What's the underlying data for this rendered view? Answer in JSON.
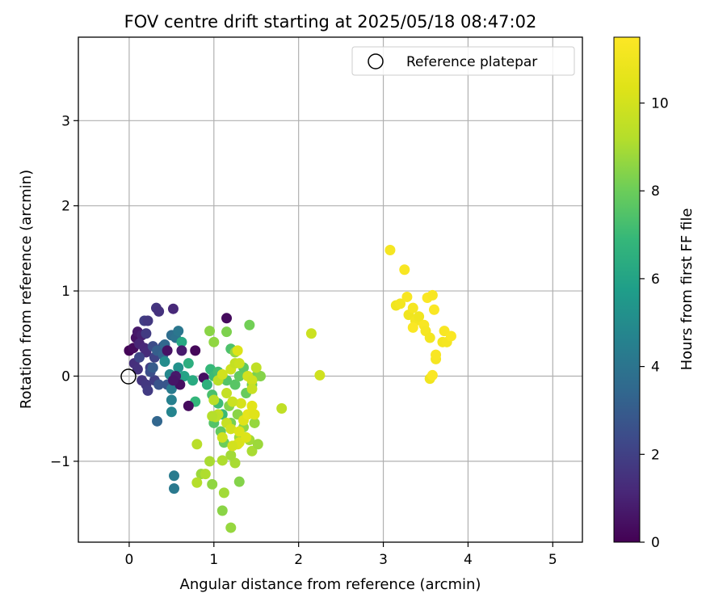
{
  "chart_data": {
    "type": "scatter",
    "title": "FOV centre drift starting at 2025/05/18 08:47:02",
    "xlabel": "Angular distance from reference (arcmin)",
    "ylabel": "Rotation from reference (arcmin)",
    "xlim": [
      -0.6,
      5.35
    ],
    "ylim": [
      -1.95,
      3.98
    ],
    "xticks": [
      0,
      1,
      2,
      3,
      4,
      5
    ],
    "yticks": [
      -1,
      0,
      1,
      2,
      3
    ],
    "grid": true,
    "legend": {
      "placement": "top-right",
      "entries": [
        "Reference platepar"
      ]
    },
    "reference_point": {
      "x": 0,
      "y": 0
    },
    "colorbar": {
      "label": "Hours from first FF file",
      "range": [
        0,
        11.5
      ],
      "ticks": [
        0,
        2,
        4,
        6,
        8,
        10
      ],
      "colormap": "viridis"
    },
    "series": [
      {
        "points": [
          [
            0.0,
            0.3,
            0.1
          ],
          [
            0.05,
            0.33,
            0.3
          ],
          [
            0.08,
            0.45,
            0.5
          ],
          [
            0.1,
            0.52,
            0.7
          ],
          [
            0.15,
            0.48,
            0.9
          ],
          [
            0.12,
            0.38,
            1.1
          ],
          [
            0.18,
            0.33,
            1.2
          ],
          [
            0.2,
            0.28,
            1.3
          ],
          [
            0.06,
            0.15,
            1.4
          ],
          [
            0.1,
            0.08,
            1.5
          ],
          [
            0.15,
            -0.05,
            1.6
          ],
          [
            0.2,
            -0.1,
            1.7
          ],
          [
            0.22,
            -0.17,
            1.8
          ],
          [
            0.3,
            -0.05,
            1.9
          ],
          [
            0.25,
            0.1,
            2.0
          ],
          [
            0.3,
            0.22,
            2.1
          ],
          [
            0.35,
            0.3,
            2.2
          ],
          [
            0.4,
            0.35,
            2.3
          ],
          [
            0.28,
            0.35,
            2.4
          ],
          [
            0.18,
            0.65,
            1.9
          ],
          [
            0.22,
            0.65,
            1.7
          ],
          [
            0.32,
            0.8,
            1.6
          ],
          [
            0.35,
            0.76,
            1.5
          ],
          [
            0.52,
            0.79,
            1.2
          ],
          [
            0.2,
            0.5,
            1.8
          ],
          [
            0.12,
            0.22,
            2.2
          ],
          [
            0.25,
            0.05,
            2.5
          ],
          [
            0.35,
            -0.1,
            2.7
          ],
          [
            0.45,
            -0.1,
            2.8
          ],
          [
            0.28,
            0.1,
            3.0
          ],
          [
            0.33,
            0.3,
            3.1
          ],
          [
            0.4,
            0.25,
            3.3
          ],
          [
            0.42,
            0.37,
            3.5
          ],
          [
            0.5,
            0.48,
            3.7
          ],
          [
            0.55,
            0.45,
            3.9
          ],
          [
            0.58,
            0.53,
            4.1
          ],
          [
            0.5,
            -0.15,
            4.3
          ],
          [
            0.5,
            -0.28,
            4.5
          ],
          [
            0.5,
            -0.42,
            4.7
          ],
          [
            0.33,
            -0.53,
            3.4
          ],
          [
            0.53,
            -1.17,
            4.3
          ],
          [
            0.53,
            -1.32,
            4.2
          ],
          [
            0.48,
            0.02,
            4.8
          ],
          [
            0.42,
            0.17,
            5.0
          ],
          [
            0.58,
            0.1,
            5.2
          ],
          [
            0.62,
            0.4,
            6.2
          ],
          [
            0.65,
            0.0,
            6.0
          ],
          [
            0.7,
            0.15,
            6.5
          ],
          [
            0.75,
            -0.05,
            6.3
          ],
          [
            0.78,
            -0.3,
            6.8
          ],
          [
            0.55,
            0.0,
            0.7
          ],
          [
            0.6,
            -0.1,
            0.4
          ],
          [
            0.62,
            0.3,
            0.8
          ],
          [
            0.45,
            0.3,
            0.5
          ],
          [
            0.52,
            -0.05,
            0.6
          ],
          [
            0.7,
            -0.35,
            0.3
          ],
          [
            0.78,
            0.3,
            0.2
          ],
          [
            0.88,
            -0.02,
            0.4
          ],
          [
            1.15,
            0.68,
            0.3
          ],
          [
            0.92,
            -0.1,
            6.6
          ],
          [
            0.96,
            0.08,
            6.9
          ],
          [
            1.0,
            0.0,
            7.0
          ],
          [
            1.05,
            0.05,
            7.2
          ],
          [
            1.15,
            -0.05,
            7.5
          ],
          [
            1.2,
            0.32,
            7.4
          ],
          [
            1.25,
            -0.1,
            7.6
          ],
          [
            1.3,
            0.0,
            7.8
          ],
          [
            1.35,
            0.1,
            7.7
          ],
          [
            1.38,
            -0.2,
            7.9
          ],
          [
            1.45,
            -0.1,
            8.0
          ],
          [
            1.5,
            0.0,
            8.2
          ],
          [
            1.55,
            0.0,
            8.4
          ],
          [
            1.42,
            0.6,
            8.1
          ],
          [
            1.15,
            0.52,
            8.3
          ],
          [
            1.0,
            0.4,
            8.6
          ],
          [
            0.95,
            0.53,
            8.5
          ],
          [
            1.25,
            0.28,
            8.7
          ],
          [
            0.98,
            -0.22,
            7.3
          ],
          [
            1.05,
            -0.32,
            7.1
          ],
          [
            1.1,
            -0.45,
            7.0
          ],
          [
            1.0,
            -0.55,
            7.5
          ],
          [
            1.08,
            -0.65,
            7.8
          ],
          [
            1.12,
            -0.78,
            8.0
          ],
          [
            1.2,
            -0.55,
            8.2
          ],
          [
            1.18,
            -0.35,
            8.4
          ],
          [
            1.28,
            -0.45,
            8.5
          ],
          [
            1.35,
            -0.6,
            8.6
          ],
          [
            1.3,
            -0.72,
            8.8
          ],
          [
            1.42,
            -0.75,
            8.9
          ],
          [
            1.45,
            -0.88,
            9.0
          ],
          [
            1.52,
            -0.8,
            8.8
          ],
          [
            1.48,
            -0.55,
            8.7
          ],
          [
            1.25,
            -1.02,
            9.0
          ],
          [
            1.2,
            -0.93,
            8.9
          ],
          [
            1.1,
            -0.99,
            9.1
          ],
          [
            0.95,
            -1.0,
            9.0
          ],
          [
            0.85,
            -1.15,
            8.8
          ],
          [
            0.8,
            -1.25,
            9.2
          ],
          [
            0.98,
            -1.27,
            8.6
          ],
          [
            1.12,
            -1.37,
            8.9
          ],
          [
            1.3,
            -1.24,
            8.4
          ],
          [
            1.1,
            -1.58,
            8.5
          ],
          [
            1.2,
            -1.78,
            8.7
          ],
          [
            0.8,
            -0.8,
            9.3
          ],
          [
            0.9,
            -1.15,
            9.1
          ],
          [
            1.05,
            -0.45,
            9.5
          ],
          [
            1.15,
            -0.55,
            9.7
          ],
          [
            1.1,
            -0.72,
            9.9
          ],
          [
            1.2,
            -0.62,
            10.0
          ],
          [
            1.28,
            -0.8,
            10.2
          ],
          [
            1.3,
            -0.65,
            10.3
          ],
          [
            1.35,
            -0.52,
            10.4
          ],
          [
            1.4,
            -0.45,
            10.6
          ],
          [
            1.45,
            -0.35,
            10.5
          ],
          [
            1.32,
            -0.32,
            10.1
          ],
          [
            1.22,
            -0.3,
            9.8
          ],
          [
            1.15,
            -0.2,
            9.6
          ],
          [
            1.05,
            -0.05,
            9.4
          ],
          [
            1.1,
            0.02,
            10.0
          ],
          [
            1.2,
            0.08,
            9.9
          ],
          [
            1.25,
            0.15,
            9.6
          ],
          [
            1.3,
            0.15,
            9.8
          ],
          [
            1.28,
            0.3,
            10.3
          ],
          [
            1.4,
            0.0,
            10.0
          ],
          [
            1.45,
            -0.05,
            9.9
          ],
          [
            1.45,
            -0.15,
            9.7
          ],
          [
            1.5,
            0.1,
            9.5
          ],
          [
            1.48,
            -0.45,
            10.4
          ],
          [
            1.3,
            -0.78,
            10.2
          ],
          [
            1.22,
            -0.82,
            10.0
          ],
          [
            1.02,
            -0.48,
            9.4
          ],
          [
            0.98,
            -0.47,
            9.2
          ],
          [
            1.0,
            -0.28,
            9.3
          ],
          [
            1.38,
            -0.72,
            10.3
          ],
          [
            1.8,
            -0.38,
            9.5
          ],
          [
            2.15,
            0.5,
            9.8
          ],
          [
            2.25,
            0.01,
            9.9
          ],
          [
            3.08,
            1.48,
            11.2
          ],
          [
            3.25,
            1.25,
            11.3
          ],
          [
            3.15,
            0.83,
            11.0
          ],
          [
            3.2,
            0.85,
            11.1
          ],
          [
            3.28,
            0.93,
            11.3
          ],
          [
            3.3,
            0.72,
            11.0
          ],
          [
            3.35,
            0.8,
            11.2
          ],
          [
            3.38,
            0.65,
            11.1
          ],
          [
            3.35,
            0.57,
            11.4
          ],
          [
            3.42,
            0.7,
            11.0
          ],
          [
            3.48,
            0.6,
            11.3
          ],
          [
            3.5,
            0.53,
            11.2
          ],
          [
            3.52,
            0.92,
            11.4
          ],
          [
            3.58,
            0.95,
            11.3
          ],
          [
            3.55,
            0.45,
            11.1
          ],
          [
            3.6,
            0.78,
            11.4
          ],
          [
            3.62,
            0.2,
            11.2
          ],
          [
            3.62,
            0.25,
            11.3
          ],
          [
            3.55,
            -0.03,
            11.0
          ],
          [
            3.58,
            0.01,
            11.4
          ],
          [
            3.7,
            0.4,
            11.1
          ],
          [
            3.72,
            0.53,
            11.3
          ],
          [
            3.75,
            0.4,
            11.2
          ],
          [
            3.8,
            0.47,
            11.4
          ]
        ]
      }
    ]
  }
}
